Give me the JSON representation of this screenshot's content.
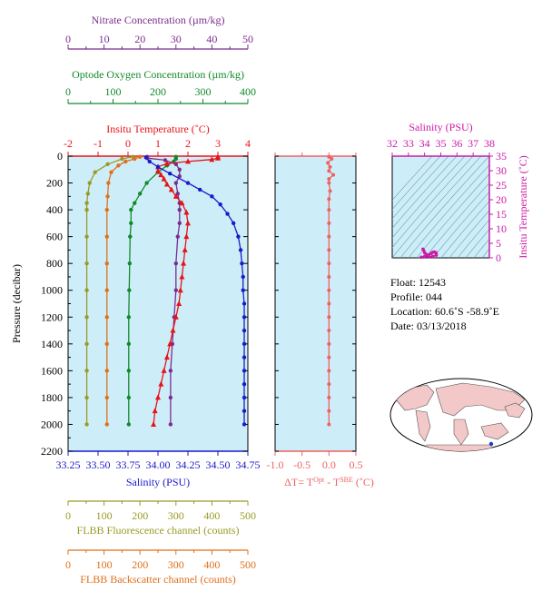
{
  "colors": {
    "nitrate": "#7b2d8e",
    "oxygen": "#118a2a",
    "temperature": "#e8131a",
    "salinity": "#1a1acb",
    "fluorescence": "#9a9a26",
    "backscatter": "#e0701a",
    "delta": "#f06060",
    "panel_bg": "#cdeef8",
    "ts_title": "#cc1aa6",
    "ts_line": "#6a9fb0",
    "map_land": "#f3c8c8",
    "map_sea": "#ffffff"
  },
  "info": {
    "float": "Float:  12543",
    "profile": "Profile:  044",
    "location": "Location:  60.6˚S  -58.9˚E",
    "date": "Date:  03/13/2018"
  },
  "chart_data": [
    {
      "type": "line",
      "panel": "main-profile",
      "ylabel": "Pressure (decibar)",
      "ylim": [
        2200,
        0
      ],
      "y_ticks": [
        0,
        200,
        400,
        600,
        800,
        1000,
        1200,
        1400,
        1600,
        1800,
        2000,
        2200
      ],
      "y_tick_labels": [
        "0",
        "200",
        "400",
        "600",
        "800",
        "1000",
        "1200",
        "1400",
        "1600",
        "1800",
        "2000",
        "2200"
      ],
      "axes": {
        "nitrate": {
          "label": "Nitrate Concentration (µm/kg)",
          "lim": [
            0,
            50
          ],
          "ticks": [
            0,
            10,
            20,
            30,
            40,
            50
          ],
          "tick_labels": [
            "0",
            "10",
            "20",
            "30",
            "40",
            "50"
          ]
        },
        "oxygen": {
          "label": "Optode Oxygen Concentration (µm/kg)",
          "lim": [
            0,
            400
          ],
          "ticks": [
            0,
            100,
            200,
            300,
            400
          ],
          "tick_labels": [
            "0",
            "100",
            "200",
            "300",
            "400"
          ]
        },
        "temperature": {
          "label": "Insitu Temperature (˚C)",
          "lim": [
            -2,
            4
          ],
          "ticks": [
            -2,
            -1,
            0,
            1,
            2,
            3,
            4
          ],
          "tick_labels": [
            "-2",
            "-1",
            "0",
            "1",
            "2",
            "3",
            "4"
          ]
        },
        "salinity": {
          "label": "Salinity (PSU)",
          "lim": [
            33.25,
            34.75
          ],
          "ticks": [
            33.25,
            33.5,
            33.75,
            34.0,
            34.25,
            34.5,
            34.75
          ],
          "tick_labels": [
            "33.25",
            "33.50",
            "33.75",
            "34.00",
            "34.25",
            "34.50",
            "34.75"
          ]
        },
        "fluorescence": {
          "label": "FLBB Fluorescence channel (counts)",
          "lim": [
            0,
            500
          ],
          "ticks": [
            0,
            100,
            200,
            300,
            400,
            500
          ],
          "tick_labels": [
            "0",
            "100",
            "200",
            "300",
            "400",
            "500"
          ]
        },
        "backscatter": {
          "label": "FLBB Backscatter channel (counts)",
          "lim": [
            0,
            500
          ],
          "ticks": [
            0,
            100,
            200,
            300,
            400,
            500
          ],
          "tick_labels": [
            "0",
            "100",
            "200",
            "300",
            "400",
            "500"
          ]
        }
      },
      "series": [
        {
          "key": "temperature",
          "marker": "triangle",
          "points": [
            [
              3.0,
              5
            ],
            [
              3.0,
              15
            ],
            [
              2.8,
              25
            ],
            [
              2.0,
              40
            ],
            [
              1.3,
              55
            ],
            [
              1.0,
              80
            ],
            [
              1.0,
              110
            ],
            [
              1.1,
              140
            ],
            [
              1.2,
              170
            ],
            [
              1.3,
              210
            ],
            [
              1.45,
              250
            ],
            [
              1.6,
              300
            ],
            [
              1.8,
              350
            ],
            [
              1.95,
              420
            ],
            [
              2.0,
              500
            ],
            [
              1.95,
              600
            ],
            [
              1.9,
              700
            ],
            [
              1.85,
              800
            ],
            [
              1.8,
              900
            ],
            [
              1.75,
              1000
            ],
            [
              1.7,
              1100
            ],
            [
              1.6,
              1200
            ],
            [
              1.5,
              1300
            ],
            [
              1.4,
              1400
            ],
            [
              1.3,
              1500
            ],
            [
              1.2,
              1600
            ],
            [
              1.1,
              1700
            ],
            [
              1.0,
              1800
            ],
            [
              0.9,
              1900
            ],
            [
              0.85,
              2000
            ]
          ]
        },
        {
          "key": "salinity",
          "marker": "circle",
          "points": [
            [
              33.9,
              10
            ],
            [
              33.93,
              40
            ],
            [
              34.0,
              80
            ],
            [
              34.1,
              130
            ],
            [
              34.25,
              200
            ],
            [
              34.35,
              250
            ],
            [
              34.45,
              300
            ],
            [
              34.52,
              360
            ],
            [
              34.58,
              430
            ],
            [
              34.63,
              500
            ],
            [
              34.67,
              600
            ],
            [
              34.69,
              700
            ],
            [
              34.7,
              800
            ],
            [
              34.71,
              900
            ],
            [
              34.71,
              1000
            ],
            [
              34.72,
              1100
            ],
            [
              34.72,
              1200
            ],
            [
              34.72,
              1300
            ],
            [
              34.72,
              1400
            ],
            [
              34.72,
              1500
            ],
            [
              34.72,
              1600
            ],
            [
              34.72,
              1700
            ],
            [
              34.72,
              1800
            ],
            [
              34.72,
              1900
            ],
            [
              34.72,
              2000
            ]
          ]
        },
        {
          "key": "nitrate",
          "marker": "circle",
          "points": [
            [
              22,
              5
            ],
            [
              22,
              15
            ],
            [
              27,
              30
            ],
            [
              30,
              60
            ],
            [
              31,
              100
            ],
            [
              31,
              150
            ],
            [
              30,
              200
            ],
            [
              30.5,
              280
            ],
            [
              31,
              350
            ],
            [
              31,
              400
            ],
            [
              31,
              500
            ],
            [
              30.5,
              600
            ],
            [
              30,
              800
            ],
            [
              30,
              1000
            ],
            [
              29.5,
              1200
            ],
            [
              29,
              1400
            ],
            [
              28.5,
              1600
            ],
            [
              28.5,
              1800
            ],
            [
              28.5,
              2000
            ]
          ]
        },
        {
          "key": "oxygen",
          "marker": "circle",
          "points": [
            [
              240,
              5
            ],
            [
              240,
              20
            ],
            [
              235,
              40
            ],
            [
              220,
              70
            ],
            [
              200,
              120
            ],
            [
              175,
              200
            ],
            [
              160,
              280
            ],
            [
              148,
              350
            ],
            [
              140,
              400
            ],
            [
              140,
              500
            ],
            [
              138,
              600
            ],
            [
              137,
              800
            ],
            [
              136,
              1000
            ],
            [
              135,
              1200
            ],
            [
              135,
              1400
            ],
            [
              135,
              1600
            ],
            [
              135,
              1800
            ],
            [
              135,
              2000
            ]
          ]
        },
        {
          "key": "fluorescence",
          "marker": "circle",
          "points": [
            [
              180,
              5
            ],
            [
              150,
              20
            ],
            [
              110,
              60
            ],
            [
              75,
              120
            ],
            [
              60,
              200
            ],
            [
              55,
              280
            ],
            [
              52,
              350
            ],
            [
              52,
              400
            ],
            [
              52,
              600
            ],
            [
              52,
              800
            ],
            [
              52,
              1000
            ],
            [
              52,
              1200
            ],
            [
              52,
              1400
            ],
            [
              52,
              1600
            ],
            [
              52,
              1800
            ],
            [
              52,
              2000
            ]
          ]
        },
        {
          "key": "backscatter",
          "marker": "circle",
          "points": [
            [
              200,
              5
            ],
            [
              185,
              20
            ],
            [
              160,
              40
            ],
            [
              140,
              70
            ],
            [
              120,
              120
            ],
            [
              112,
              200
            ],
            [
              110,
              300
            ],
            [
              108,
              400
            ],
            [
              108,
              600
            ],
            [
              108,
              800
            ],
            [
              108,
              1000
            ],
            [
              108,
              1200
            ],
            [
              108,
              1400
            ],
            [
              108,
              1600
            ],
            [
              108,
              1800
            ],
            [
              108,
              2000
            ]
          ]
        }
      ]
    },
    {
      "type": "line",
      "panel": "delta-t",
      "xlabel": "ΔT= T^Opt - T^SBE (˚C)",
      "xlim": [
        -1.0,
        0.5
      ],
      "ticks": [
        -1.0,
        -0.5,
        0.0,
        0.5
      ],
      "tick_labels": [
        "-1.0",
        "-0.5",
        "0.0",
        "0.5"
      ],
      "points": [
        [
          0.0,
          5
        ],
        [
          0.05,
          20
        ],
        [
          -0.02,
          50
        ],
        [
          0.02,
          80
        ],
        [
          0.0,
          110
        ],
        [
          0.08,
          140
        ],
        [
          0.0,
          170
        ],
        [
          0.0,
          200
        ],
        [
          0.02,
          260
        ],
        [
          0.0,
          320
        ],
        [
          0.0,
          400
        ],
        [
          0.0,
          500
        ],
        [
          0.0,
          600
        ],
        [
          0.0,
          700
        ],
        [
          0.0,
          800
        ],
        [
          0.0,
          900
        ],
        [
          0.0,
          1000
        ],
        [
          0.0,
          1100
        ],
        [
          0.0,
          1200
        ],
        [
          0.0,
          1300
        ],
        [
          0.0,
          1400
        ],
        [
          0.0,
          1500
        ],
        [
          0.0,
          1600
        ],
        [
          0.0,
          1700
        ],
        [
          0.0,
          1800
        ],
        [
          0.0,
          1900
        ],
        [
          0.0,
          2000
        ]
      ]
    },
    {
      "type": "scatter",
      "panel": "ts-diagram",
      "title": "Salinity (PSU)",
      "ylabel": "Insitu Temperature (˚C)",
      "xlim": [
        32,
        38
      ],
      "ylim": [
        0,
        35
      ],
      "x_ticks": [
        32,
        33,
        34,
        35,
        36,
        37,
        38
      ],
      "x_tick_labels": [
        "32",
        "33",
        "34",
        "35",
        "36",
        "37",
        "38"
      ],
      "y_ticks": [
        0,
        5,
        10,
        15,
        20,
        25,
        30,
        35
      ],
      "y_tick_labels": [
        "0",
        "5",
        "10",
        "15",
        "20",
        "25",
        "30",
        "35"
      ],
      "points": [
        [
          33.9,
          3.0
        ],
        [
          33.95,
          2.5
        ],
        [
          34.0,
          1.8
        ],
        [
          34.1,
          1.2
        ],
        [
          34.25,
          1.0
        ],
        [
          34.4,
          1.5
        ],
        [
          34.5,
          1.9
        ],
        [
          34.6,
          2.0
        ],
        [
          34.7,
          1.8
        ],
        [
          34.72,
          1.2
        ],
        [
          34.72,
          0.9
        ],
        [
          34.5,
          0.5
        ],
        [
          34.3,
          0.3
        ],
        [
          34.0,
          0.5
        ],
        [
          33.8,
          0.2
        ]
      ]
    }
  ]
}
